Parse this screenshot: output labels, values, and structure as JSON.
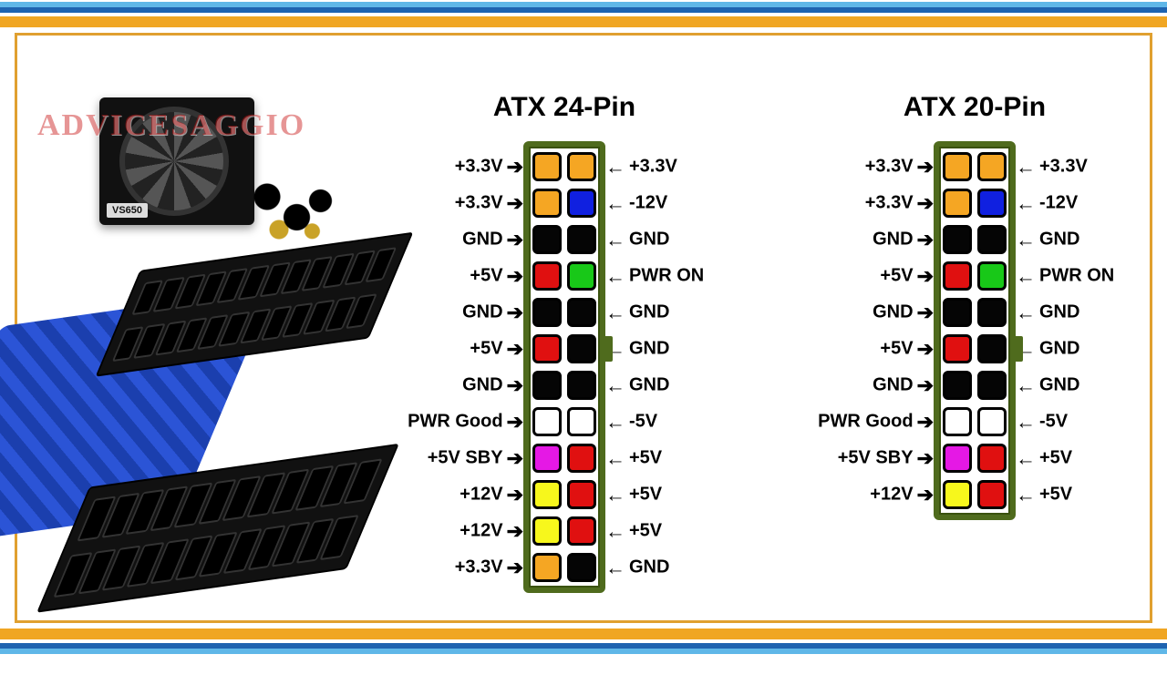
{
  "palette": {
    "stripe_blue1": "#5fb7e8",
    "stripe_blue2": "#1e63b0",
    "stripe_gold": "#f0a623",
    "frame_border": "#e0a030",
    "socket_border": "#4f6b1d",
    "socket_border_dark": "#3a520f",
    "pin_orange": "#f5a623",
    "pin_black": "#050505",
    "pin_blue": "#1020e0",
    "pin_red": "#e01010",
    "pin_green": "#18c818",
    "pin_white": "#ffffff",
    "pin_magenta": "#e518e5",
    "pin_yellow": "#f7f71c",
    "text": "#000000"
  },
  "watermark": "ADVICESAGGIO",
  "psu_label": "VS650",
  "diagrams": [
    {
      "id": "atx24",
      "title": "ATX 24-Pin",
      "key_notch_row": 5,
      "rows": [
        {
          "l": "+3.3V",
          "lc": "pin_orange",
          "r": "+3.3V",
          "rc": "pin_orange"
        },
        {
          "l": "+3.3V",
          "lc": "pin_orange",
          "r": "-12V",
          "rc": "pin_blue"
        },
        {
          "l": "GND",
          "lc": "pin_black",
          "r": "GND",
          "rc": "pin_black"
        },
        {
          "l": "+5V",
          "lc": "pin_red",
          "r": "PWR ON",
          "rc": "pin_green"
        },
        {
          "l": "GND",
          "lc": "pin_black",
          "r": "GND",
          "rc": "pin_black"
        },
        {
          "l": "+5V",
          "lc": "pin_red",
          "r": "GND",
          "rc": "pin_black"
        },
        {
          "l": "GND",
          "lc": "pin_black",
          "r": "GND",
          "rc": "pin_black"
        },
        {
          "l": "PWR Good",
          "lc": "pin_white",
          "r": "-5V",
          "rc": "pin_white"
        },
        {
          "l": "+5V SBY",
          "lc": "pin_magenta",
          "r": "+5V",
          "rc": "pin_red"
        },
        {
          "l": "+12V",
          "lc": "pin_yellow",
          "r": "+5V",
          "rc": "pin_red"
        },
        {
          "l": "+12V",
          "lc": "pin_yellow",
          "r": "+5V",
          "rc": "pin_red"
        },
        {
          "l": "+3.3V",
          "lc": "pin_orange",
          "r": "GND",
          "rc": "pin_black"
        }
      ]
    },
    {
      "id": "atx20",
      "title": "ATX 20-Pin",
      "key_notch_row": 5,
      "rows": [
        {
          "l": "+3.3V",
          "lc": "pin_orange",
          "r": "+3.3V",
          "rc": "pin_orange"
        },
        {
          "l": "+3.3V",
          "lc": "pin_orange",
          "r": "-12V",
          "rc": "pin_blue"
        },
        {
          "l": "GND",
          "lc": "pin_black",
          "r": "GND",
          "rc": "pin_black"
        },
        {
          "l": "+5V",
          "lc": "pin_red",
          "r": "PWR ON",
          "rc": "pin_green"
        },
        {
          "l": "GND",
          "lc": "pin_black",
          "r": "GND",
          "rc": "pin_black"
        },
        {
          "l": "+5V",
          "lc": "pin_red",
          "r": "GND",
          "rc": "pin_black"
        },
        {
          "l": "GND",
          "lc": "pin_black",
          "r": "GND",
          "rc": "pin_black"
        },
        {
          "l": "PWR Good",
          "lc": "pin_white",
          "r": "-5V",
          "rc": "pin_white"
        },
        {
          "l": "+5V SBY",
          "lc": "pin_magenta",
          "r": "+5V",
          "rc": "pin_red"
        },
        {
          "l": "+12V",
          "lc": "pin_yellow",
          "r": "+5V",
          "rc": "pin_red"
        }
      ]
    }
  ],
  "style": {
    "title_fontsize": 30,
    "label_fontsize": 20,
    "pin_size": 32,
    "pin_radius": 6,
    "row_gap": 8,
    "socket_border_width": 6
  }
}
